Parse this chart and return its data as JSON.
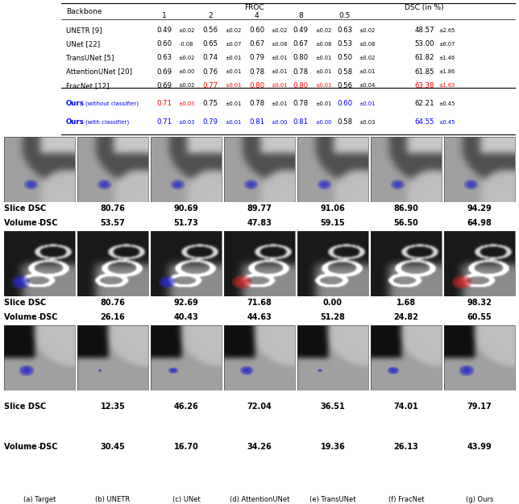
{
  "table": {
    "rows_normal": [
      {
        "name": "UNETR [9]",
        "vals": [
          [
            "0.49",
            "±0.02"
          ],
          [
            "0.56",
            "±0.02"
          ],
          [
            "0.60",
            "±0.02"
          ],
          [
            "0.49",
            "±0.02"
          ],
          [
            "0.63",
            "±0.02"
          ],
          [
            "48.57",
            "±2.65"
          ]
        ],
        "val_colors": [
          "black",
          "black",
          "black",
          "black",
          "black",
          "black"
        ]
      },
      {
        "name": "UNet [22]",
        "vals": [
          [
            "0.60",
            "₋0.08"
          ],
          [
            "0.65",
            "±0.07"
          ],
          [
            "0.67",
            "±0.08"
          ],
          [
            "0.67",
            "±0.08"
          ],
          [
            "0.53",
            "±0.08"
          ],
          [
            "53.00",
            "±6.07"
          ]
        ],
        "val_colors": [
          "black",
          "black",
          "black",
          "black",
          "black",
          "black"
        ]
      },
      {
        "name": "TransUNet [5]",
        "vals": [
          [
            "0.63",
            "±0.02"
          ],
          [
            "0.74",
            "±0.01"
          ],
          [
            "0.79",
            "±0.01"
          ],
          [
            "0.80",
            "±0.01"
          ],
          [
            "0.50",
            "±0.02"
          ],
          [
            "61.82",
            "±1.46"
          ]
        ],
        "val_colors": [
          "black",
          "black",
          "black",
          "black",
          "black",
          "black"
        ]
      },
      {
        "name": "AttentionUNet [20]",
        "vals": [
          [
            "0.69",
            "±0.00"
          ],
          [
            "0.76",
            "±0.01"
          ],
          [
            "0.78",
            "±0.01"
          ],
          [
            "0.78",
            "±0.01"
          ],
          [
            "0.58",
            "±0.01"
          ],
          [
            "61.85",
            "±1.86"
          ]
        ],
        "val_colors": [
          "black",
          "black",
          "black",
          "black",
          "black",
          "black"
        ]
      },
      {
        "name": "FracNet [12]",
        "vals": [
          [
            "0.69",
            "±0.02"
          ],
          [
            "0.77",
            "±0.01"
          ],
          [
            "0.80",
            "±0.01"
          ],
          [
            "0.80",
            "±0.01"
          ],
          [
            "0.56",
            "±0.04"
          ],
          [
            "63.38",
            "±1.63"
          ]
        ],
        "val_colors": [
          "black",
          "red",
          "red",
          "red",
          "black",
          "red"
        ]
      }
    ],
    "rows_ours": [
      {
        "name_main": "Ours",
        "name_sub": "(without classifier)",
        "vals": [
          [
            "0.71",
            "±0.03"
          ],
          [
            "0.75",
            "±0.01"
          ],
          [
            "0.78",
            "±0.01"
          ],
          [
            "0.78",
            "±0.01"
          ],
          [
            "0.60",
            "±0.01"
          ],
          [
            "62.21",
            "±0.45"
          ]
        ],
        "val_colors": [
          "red",
          "black",
          "black",
          "black",
          "blue",
          "black"
        ]
      },
      {
        "name_main": "Ours",
        "name_sub": "(with classifier)",
        "vals": [
          [
            "0.71",
            "±0.03"
          ],
          [
            "0.79",
            "±0.01"
          ],
          [
            "0.81",
            "±0.00"
          ],
          [
            "0.81",
            "±0.00"
          ],
          [
            "0.58",
            "±0.03"
          ],
          [
            "64.55",
            "±0.45"
          ]
        ],
        "val_colors": [
          "blue",
          "blue",
          "blue",
          "blue",
          "black",
          "blue"
        ]
      }
    ]
  },
  "row1": {
    "slice_dsc": [
      "–",
      "80.76",
      "90.69",
      "89.77",
      "91.06",
      "86.90",
      "94.29"
    ],
    "volume_dsc": [
      "–",
      "53.57",
      "51.73",
      "47.83",
      "59.15",
      "56.50",
      "64.98"
    ]
  },
  "row2": {
    "slice_dsc": [
      "–",
      "80.76",
      "92.69",
      "71.68",
      "0.00",
      "1.68",
      "98.32"
    ],
    "volume_dsc": [
      "–",
      "26.16",
      "40.43",
      "44.63",
      "51.28",
      "24.82",
      "60.55"
    ]
  },
  "row3": {
    "slice_dsc": [
      "–",
      "12.35",
      "46.26",
      "72.04",
      "36.51",
      "74.01",
      "79.17"
    ],
    "volume_dsc": [
      "–",
      "30.45",
      "16.70",
      "34.26",
      "19.36",
      "26.13",
      "43.99"
    ]
  },
  "col_labels": [
    "(a) Target",
    "(b) UNETR",
    "(c) UNet",
    "(d) AttentionUNet",
    "(e) TransUNet",
    "(f) FracNet",
    "(g) Ours"
  ],
  "background": "#ffffff"
}
